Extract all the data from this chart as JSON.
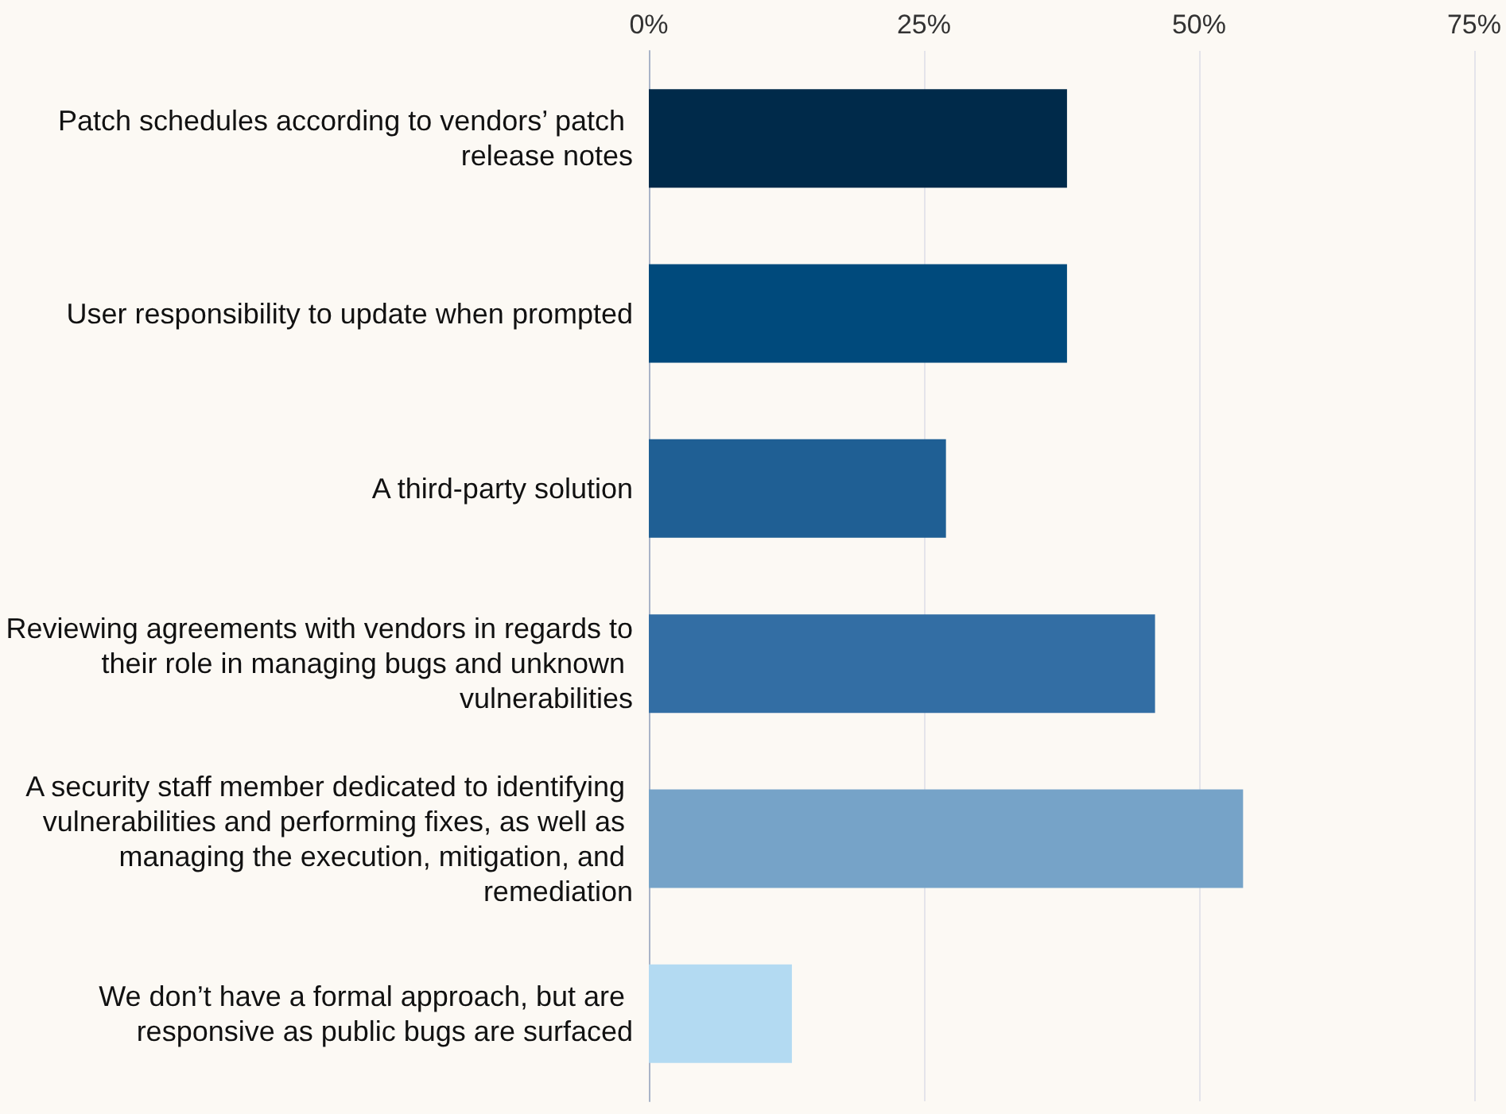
{
  "chart_data": {
    "type": "bar",
    "orientation": "horizontal",
    "categories": [
      "Patch schedules according to vendors’ patch release notes",
      "User responsibility to update when prompted",
      "A third-party solution",
      "Reviewing agreements with vendors in regards to their role in managing bugs and unknown vulnerabilities",
      "A security staff member dedicated to identifying vulnerabilities and performing fixes, as well as managing the execution, mitigation, and remediation",
      "We don’t have a formal approach, but are responsive as public bugs are surfaced"
    ],
    "values": [
      38,
      38,
      27,
      46,
      54,
      13
    ],
    "colors": [
      "#002a4a",
      "#004a7c",
      "#1f5f94",
      "#336ea4",
      "#76a3c8",
      "#b3daf2"
    ],
    "xlim": [
      0,
      75
    ],
    "xticks": [
      {
        "value": 0,
        "label": "0%"
      },
      {
        "value": 25,
        "label": "25%"
      },
      {
        "value": 50,
        "label": "50%"
      },
      {
        "value": 75,
        "label": "75%"
      }
    ],
    "grid": "x"
  }
}
